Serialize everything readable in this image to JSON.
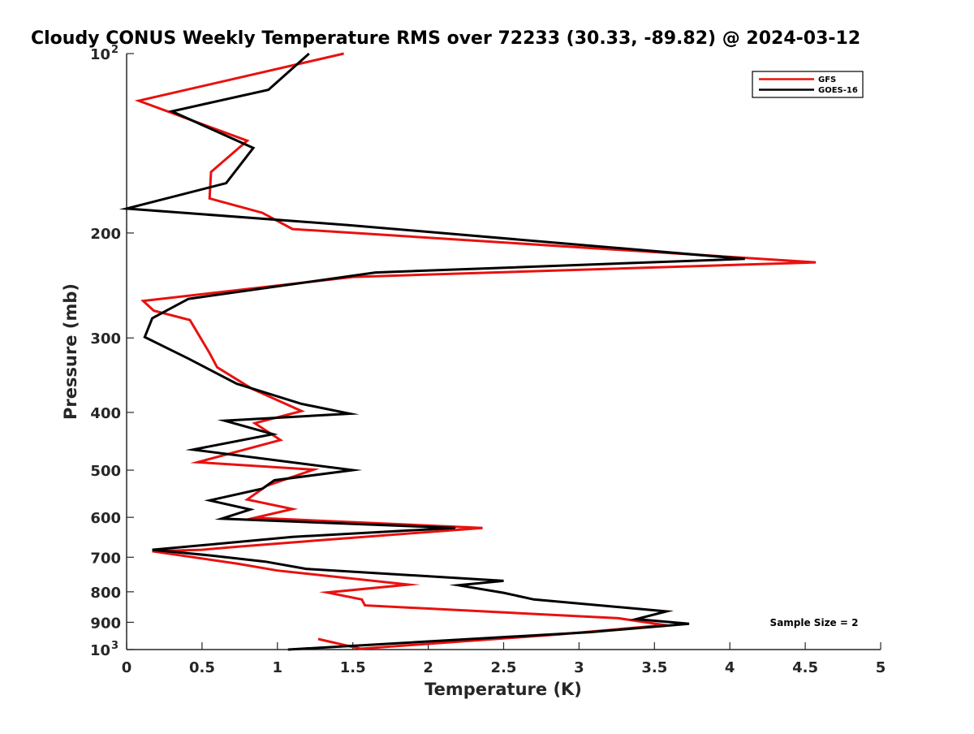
{
  "chart_data": {
    "type": "line",
    "title": "Cloudy CONUS Weekly Temperature RMS over 72233 (30.33, -89.82) @ 2024-03-12",
    "xlabel": "Temperature (K)",
    "ylabel": "Pressure (mb)",
    "xlim": [
      0,
      5
    ],
    "ylim": [
      100,
      1000
    ],
    "y_scale": "log",
    "y_reversed": true,
    "grid": false,
    "legend_position": "top-right",
    "x_ticks": [
      0,
      0.5,
      1,
      1.5,
      2,
      2.5,
      3,
      3.5,
      4,
      4.5,
      5
    ],
    "x_tick_labels": [
      "0",
      "0.5",
      "1",
      "1.5",
      "2",
      "2.5",
      "3",
      "3.5",
      "4",
      "4.5",
      "5"
    ],
    "y_ticks": [
      100,
      200,
      300,
      400,
      500,
      600,
      700,
      800,
      900,
      1000
    ],
    "y_tick_labels": [
      {
        "base": "10",
        "exp": "2"
      },
      {
        "base": "200",
        "exp": ""
      },
      {
        "base": "300",
        "exp": ""
      },
      {
        "base": "400",
        "exp": ""
      },
      {
        "base": "500",
        "exp": ""
      },
      {
        "base": "600",
        "exp": ""
      },
      {
        "base": "700",
        "exp": ""
      },
      {
        "base": "800",
        "exp": ""
      },
      {
        "base": "900",
        "exp": ""
      },
      {
        "base": "10",
        "exp": "3"
      }
    ],
    "annotation": "Sample Size = 2",
    "series": [
      {
        "name": "GFS",
        "color": "#e8110f",
        "x": [
          1.44,
          0.08,
          0.8,
          0.56,
          0.55,
          0.9,
          1.1,
          4.57,
          1.5,
          0.11,
          0.18,
          0.42,
          0.55,
          0.6,
          0.83,
          1.16,
          0.85,
          1.02,
          0.47,
          1.24,
          0.93,
          0.8,
          1.1,
          0.85,
          2.36,
          1.3,
          0.74,
          0.5,
          0.17,
          0.74,
          1.0,
          1.87,
          1.33,
          1.56,
          1.58,
          3.26,
          3.57,
          2.87,
          1.55,
          1.27
        ],
        "y": [
          100,
          120,
          140,
          158,
          175,
          185,
          197,
          224,
          237,
          260,
          270,
          280,
          318,
          336,
          365,
          398,
          417,
          445,
          485,
          499,
          531,
          560,
          581,
          601,
          625,
          655,
          672,
          680,
          684,
          718,
          737,
          778,
          802,
          824,
          843,
          886,
          910,
          943,
          997,
          960
        ]
      },
      {
        "name": "GOES-16",
        "color": "#000000",
        "x": [
          1.21,
          0.94,
          0.3,
          0.84,
          0.66,
          0.0,
          1.47,
          4.1,
          1.65,
          0.41,
          0.17,
          0.12,
          0.41,
          0.73,
          1.16,
          1.48,
          0.65,
          0.97,
          0.44,
          1.5,
          0.98,
          0.9,
          0.55,
          0.82,
          0.63,
          2.18,
          1.1,
          0.65,
          0.17,
          0.55,
          0.92,
          1.19,
          2.5,
          2.2,
          2.5,
          2.7,
          3.58,
          3.38,
          3.73,
          3.07,
          1.07
        ],
        "y": [
          100,
          115,
          125,
          144,
          165,
          182,
          194,
          221,
          233,
          258,
          278,
          299,
          325,
          358,
          387,
          402,
          413,
          435,
          462,
          500,
          520,
          537,
          562,
          582,
          603,
          625,
          647,
          663,
          680,
          695,
          712,
          732,
          767,
          780,
          803,
          824,
          863,
          889,
          905,
          935,
          1000
        ]
      }
    ]
  }
}
